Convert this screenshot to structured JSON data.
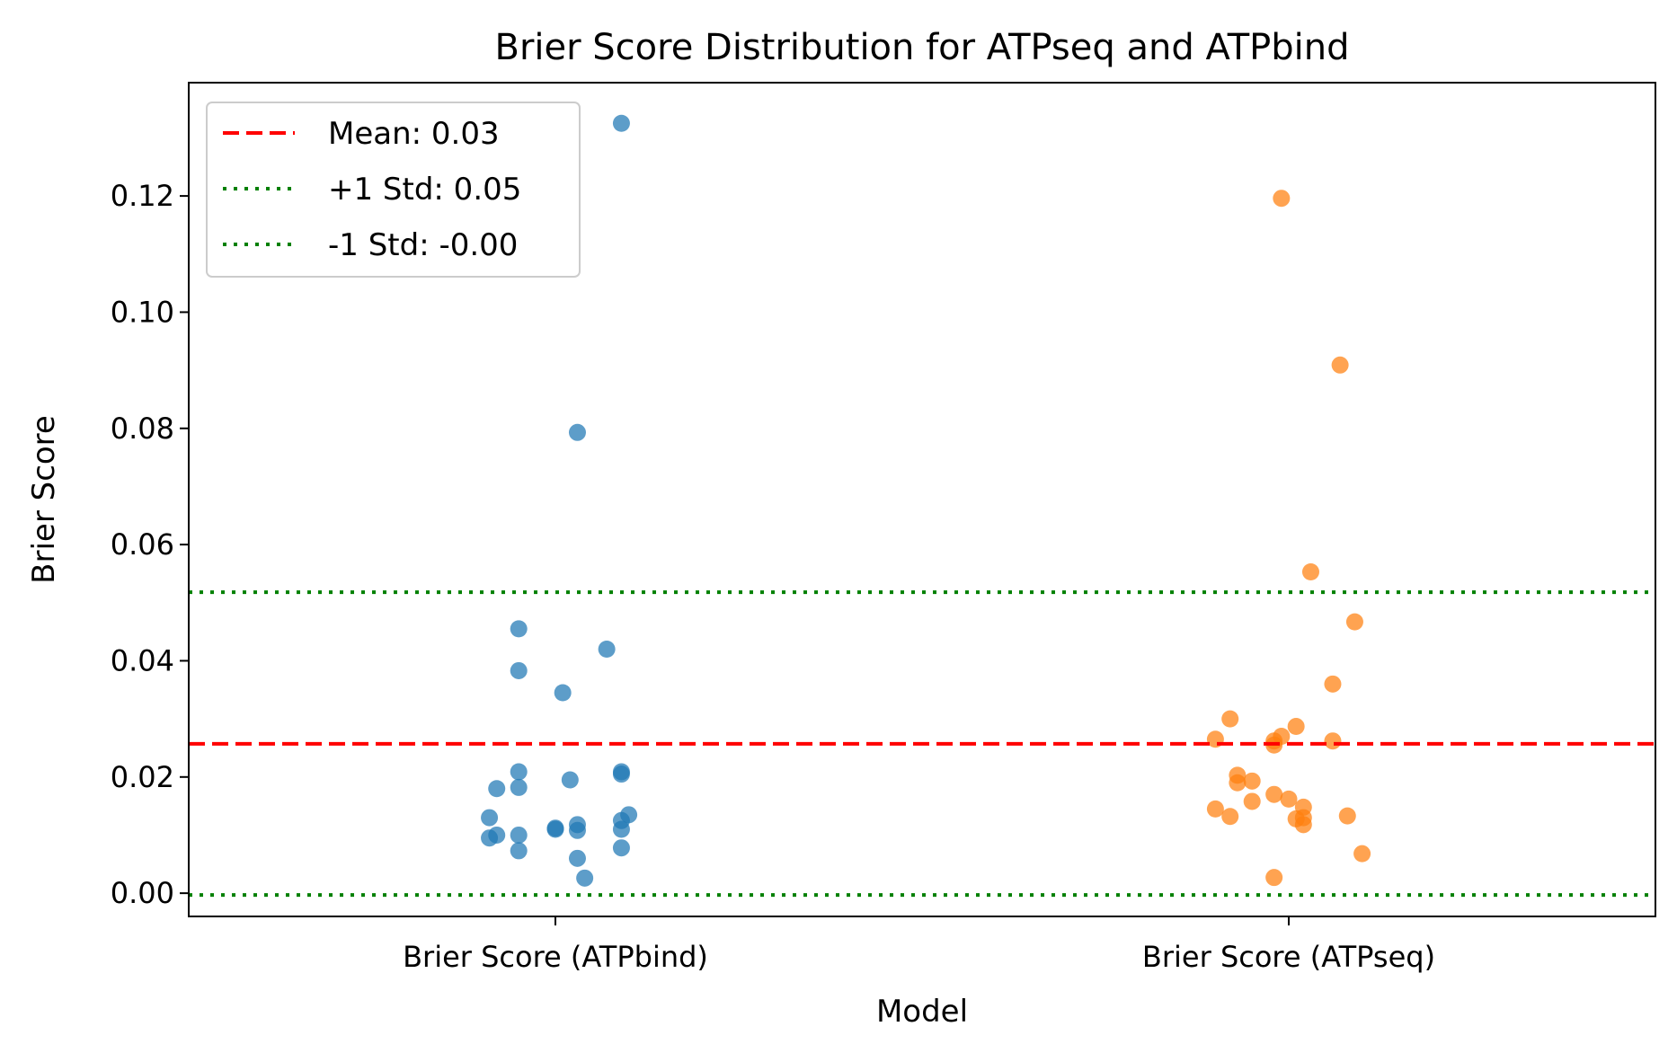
{
  "chart_data": {
    "type": "scatter",
    "title": "Brier Score Distribution for ATPseq and ATPbind",
    "xlabel": "Model",
    "ylabel": "Brier Score",
    "categories": [
      "Brier Score (ATPbind)",
      "Brier Score (ATPseq)"
    ],
    "ylim": [
      -0.004,
      0.1395
    ],
    "yticks": [
      0.0,
      0.02,
      0.04,
      0.06,
      0.08,
      0.1,
      0.12
    ],
    "ytick_labels": [
      "0.00",
      "0.02",
      "0.04",
      "0.06",
      "0.08",
      "0.10",
      "0.12"
    ],
    "grid": false,
    "legend_position": "top-left",
    "series": [
      {
        "category": "Brier Score (ATPbind)",
        "color": "#1f77b4",
        "points": [
          {
            "jitter": 0.09,
            "y": 0.1325
          },
          {
            "jitter": 0.03,
            "y": 0.0793
          },
          {
            "jitter": -0.05,
            "y": 0.0455
          },
          {
            "jitter": 0.07,
            "y": 0.042
          },
          {
            "jitter": -0.05,
            "y": 0.0383
          },
          {
            "jitter": 0.01,
            "y": 0.0345
          },
          {
            "jitter": -0.05,
            "y": 0.0209
          },
          {
            "jitter": 0.09,
            "y": 0.0209
          },
          {
            "jitter": 0.09,
            "y": 0.0205
          },
          {
            "jitter": 0.02,
            "y": 0.0195
          },
          {
            "jitter": -0.05,
            "y": 0.0182
          },
          {
            "jitter": -0.08,
            "y": 0.018
          },
          {
            "jitter": 0.1,
            "y": 0.0135
          },
          {
            "jitter": -0.09,
            "y": 0.013
          },
          {
            "jitter": 0.09,
            "y": 0.0125
          },
          {
            "jitter": 0.03,
            "y": 0.0118
          },
          {
            "jitter": 0.0,
            "y": 0.0112
          },
          {
            "jitter": 0.0,
            "y": 0.011
          },
          {
            "jitter": 0.03,
            "y": 0.0108
          },
          {
            "jitter": 0.09,
            "y": 0.011
          },
          {
            "jitter": -0.08,
            "y": 0.01
          },
          {
            "jitter": -0.05,
            "y": 0.01
          },
          {
            "jitter": -0.09,
            "y": 0.0095
          },
          {
            "jitter": 0.09,
            "y": 0.0078
          },
          {
            "jitter": -0.05,
            "y": 0.0073
          },
          {
            "jitter": 0.03,
            "y": 0.006
          },
          {
            "jitter": 0.04,
            "y": 0.0026
          }
        ]
      },
      {
        "category": "Brier Score (ATPseq)",
        "color": "#ff7f0e",
        "points": [
          {
            "jitter": -0.01,
            "y": 0.1196
          },
          {
            "jitter": 0.07,
            "y": 0.0909
          },
          {
            "jitter": 0.03,
            "y": 0.0553
          },
          {
            "jitter": 0.09,
            "y": 0.0467
          },
          {
            "jitter": 0.06,
            "y": 0.036
          },
          {
            "jitter": -0.08,
            "y": 0.03
          },
          {
            "jitter": 0.01,
            "y": 0.0287
          },
          {
            "jitter": -0.01,
            "y": 0.027
          },
          {
            "jitter": -0.1,
            "y": 0.0265
          },
          {
            "jitter": -0.02,
            "y": 0.0262
          },
          {
            "jitter": 0.06,
            "y": 0.0262
          },
          {
            "jitter": -0.02,
            "y": 0.0255
          },
          {
            "jitter": -0.07,
            "y": 0.0203
          },
          {
            "jitter": -0.05,
            "y": 0.0193
          },
          {
            "jitter": -0.07,
            "y": 0.019
          },
          {
            "jitter": -0.02,
            "y": 0.017
          },
          {
            "jitter": 0.0,
            "y": 0.0162
          },
          {
            "jitter": -0.05,
            "y": 0.0158
          },
          {
            "jitter": 0.02,
            "y": 0.0148
          },
          {
            "jitter": -0.1,
            "y": 0.0145
          },
          {
            "jitter": 0.08,
            "y": 0.0133
          },
          {
            "jitter": -0.08,
            "y": 0.0132
          },
          {
            "jitter": 0.02,
            "y": 0.013
          },
          {
            "jitter": 0.01,
            "y": 0.0128
          },
          {
            "jitter": 0.02,
            "y": 0.0118
          },
          {
            "jitter": 0.1,
            "y": 0.0068
          },
          {
            "jitter": -0.02,
            "y": 0.0027
          }
        ]
      }
    ],
    "reference_lines": [
      {
        "label": "Mean: 0.03",
        "y": 0.0257,
        "color": "#ff0000",
        "style": "dashed"
      },
      {
        "label": "+1 Std: 0.05",
        "y": 0.0518,
        "color": "#008000",
        "style": "dotted"
      },
      {
        "label": "-1 Std: -0.00",
        "y": -0.0003,
        "color": "#008000",
        "style": "dotted"
      }
    ]
  }
}
